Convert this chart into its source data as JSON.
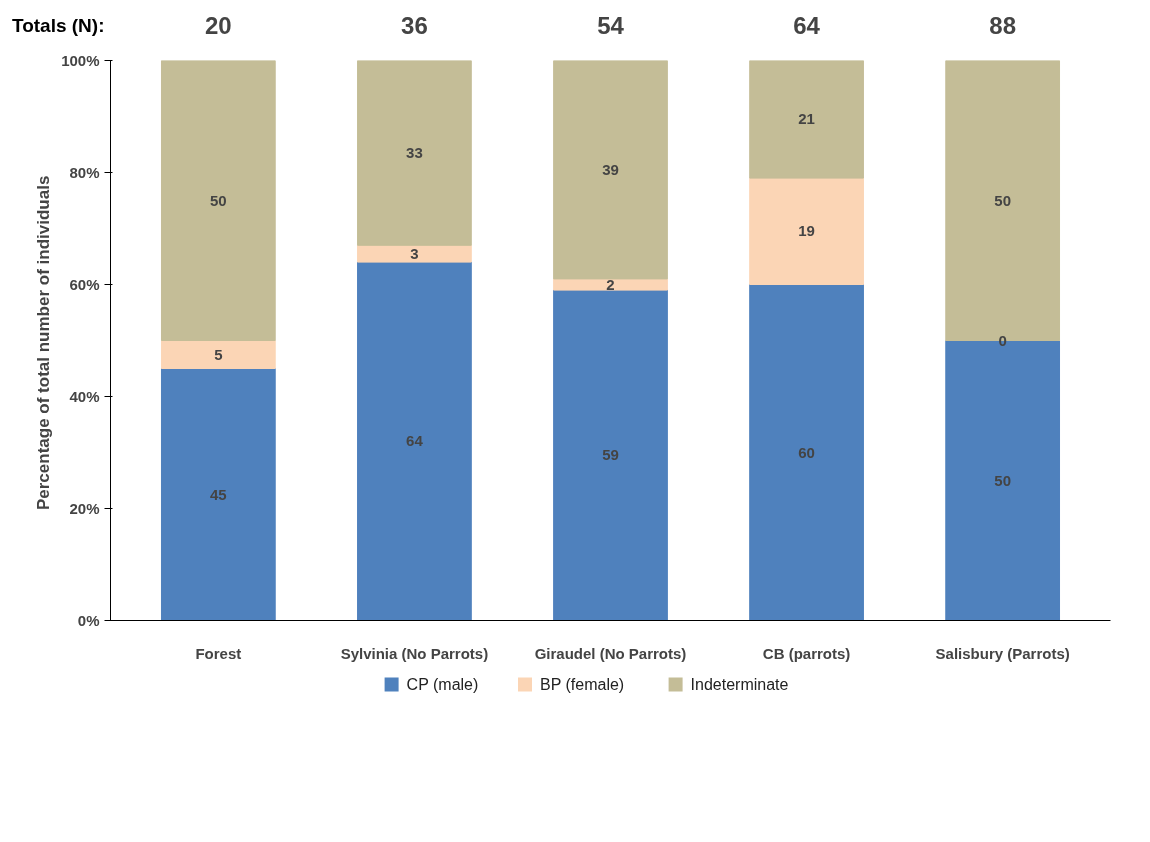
{
  "chart_data": {
    "type": "bar",
    "stacked": true,
    "ylabel": "Percentage of  total number of individuals",
    "categories": [
      "Forest",
      "Sylvinia (No Parrots)",
      "Giraudel (No Parrots)",
      "CB (parrots)",
      "Salisbury (Parrots)"
    ],
    "series": [
      {
        "name": "CP (male)",
        "color": "#4f81bd",
        "values": [
          45,
          64,
          59,
          60,
          50
        ]
      },
      {
        "name": "BP (female)",
        "color": "#fbd5b5",
        "values": [
          5,
          3,
          2,
          19,
          0
        ]
      },
      {
        "name": "Indeterminate",
        "color": "#c4bd97",
        "values": [
          50,
          33,
          39,
          21,
          50
        ]
      }
    ],
    "ylim": [
      0,
      100
    ],
    "yticks": [
      {
        "value": 0,
        "label": "0%"
      },
      {
        "value": 20,
        "label": "20%"
      },
      {
        "value": 40,
        "label": "40%"
      },
      {
        "value": 60,
        "label": "60%"
      },
      {
        "value": 80,
        "label": "80%"
      },
      {
        "value": 100,
        "label": "100%"
      }
    ],
    "data_labels": true,
    "annotations": [
      "Totals (N):",
      "20",
      "36",
      "54",
      "64",
      "88"
    ],
    "grid": false,
    "legend": "bottom"
  }
}
